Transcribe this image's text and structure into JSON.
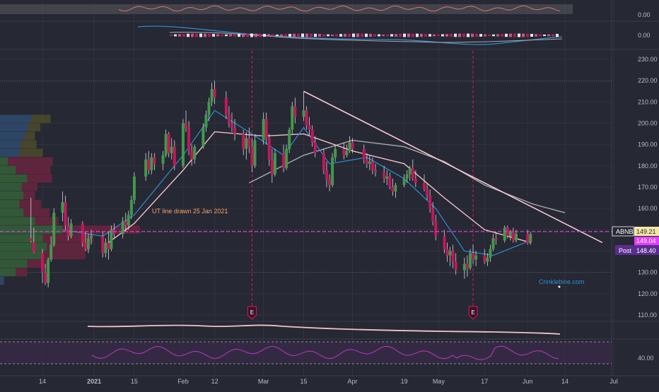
{
  "colors": {
    "background": "#262834",
    "grid": "#30333f",
    "up": "#3f9a4a",
    "down": "#c2185b",
    "ma_fast": "#2e8fd0",
    "ma_slow": "#f2c2c6",
    "ma_long": "#a8aab0",
    "trendline": "#f6c9cf",
    "earnings": "#d81b60",
    "price_line": "#e040fb",
    "vp_blue": "#2f4b6e",
    "vp_olive": "#4d4a2a",
    "vp_green": "#35603a",
    "vp_red": "#6b2540",
    "osc_fill": "#5a5a5e",
    "rsi_band": "#3a2a4a",
    "rsi_line": "#b83ac0",
    "watermark": "#2e8fd0"
  },
  "chart_data": {
    "type": "candlestick",
    "symbol": "ABNB",
    "y_ticks": [
      230,
      220,
      210,
      200,
      190,
      180,
      170,
      160,
      150,
      140,
      130,
      120,
      110
    ],
    "y_tick_labels": [
      "230.00",
      "220.00",
      "210.00",
      "200.00",
      "190.00",
      "180.00",
      "170.00",
      "160.00",
      "150.00",
      "140.00",
      "130.00",
      "120.00",
      "110.00"
    ],
    "ylim": [
      105,
      234
    ],
    "x_tick_labels": [
      "14",
      "2021",
      "15",
      "Feb",
      "12",
      "Mar",
      "15",
      "Apr",
      "19",
      "May",
      "17",
      "Jun",
      "14",
      "Jul"
    ],
    "x_tick_dates": [
      "2020-12-14",
      "2021-01-01",
      "2021-01-15",
      "2021-02-01",
      "2021-02-12",
      "2021-03-01",
      "2021-03-15",
      "2021-04-01",
      "2021-04-19",
      "2021-05-01",
      "2021-05-17",
      "2021-06-01",
      "2021-06-14",
      "2021-07-01"
    ],
    "last_price": 149.21,
    "secondary_price": 149.04,
    "post_price": 148.4,
    "price_labels": {
      "symbol": "ABNB",
      "last": "149.21",
      "secondary": "149.04",
      "post_tag": "Post",
      "post": "148.40"
    },
    "annotation": "UT line drawn 25 Jan 2021",
    "earnings_marker": "E",
    "earnings_dates": [
      "2021-02-25",
      "2021-05-13"
    ],
    "trendline": {
      "start": {
        "date": "2021-03-15",
        "value": 215
      },
      "end": {
        "date": "2021-06-27",
        "value": 144
      }
    },
    "candles": [
      [
        "2020-12-10",
        146,
        165,
        144,
        144.7
      ],
      [
        "2020-12-11",
        144,
        151,
        139,
        139.3
      ],
      [
        "2020-12-14",
        139,
        141,
        125,
        130
      ],
      [
        "2020-12-15",
        130,
        134,
        124,
        124.9
      ],
      [
        "2020-12-16",
        125,
        137,
        123,
        136
      ],
      [
        "2020-12-17",
        136,
        147,
        135,
        143
      ],
      [
        "2020-12-18",
        143,
        160,
        142,
        158
      ],
      [
        "2020-12-21",
        158,
        168,
        154,
        163
      ],
      [
        "2020-12-22",
        163,
        166,
        150,
        152
      ],
      [
        "2020-12-23",
        152,
        156,
        145,
        147
      ],
      [
        "2020-12-24",
        147,
        155,
        146,
        153
      ],
      [
        "2020-12-28",
        153,
        154,
        142,
        144
      ],
      [
        "2020-12-29",
        144,
        149,
        140,
        141
      ],
      [
        "2020-12-30",
        141,
        148,
        139,
        146
      ],
      [
        "2020-12-31",
        146,
        150,
        143,
        147
      ],
      [
        "2021-01-04",
        147,
        149,
        137,
        139
      ],
      [
        "2021-01-05",
        139,
        146,
        137,
        144
      ],
      [
        "2021-01-06",
        144,
        149,
        136,
        141
      ],
      [
        "2021-01-07",
        141,
        152,
        140,
        150
      ],
      [
        "2021-01-08",
        150,
        153,
        146,
        148
      ],
      [
        "2021-01-11",
        148,
        156,
        146,
        154
      ],
      [
        "2021-01-12",
        154,
        158,
        149,
        152
      ],
      [
        "2021-01-13",
        152,
        159,
        150,
        157
      ],
      [
        "2021-01-14",
        157,
        166,
        155,
        164
      ],
      [
        "2021-01-15",
        164,
        177,
        162,
        175
      ],
      [
        "2021-01-19",
        175,
        186,
        173,
        183
      ],
      [
        "2021-01-20",
        183,
        187,
        176,
        178
      ],
      [
        "2021-01-21",
        178,
        186,
        176,
        184
      ],
      [
        "2021-01-22",
        184,
        186,
        178,
        181
      ],
      [
        "2021-01-25",
        181,
        187,
        178,
        185
      ],
      [
        "2021-01-26",
        185,
        197,
        184,
        195
      ],
      [
        "2021-01-27",
        195,
        196,
        184,
        186
      ],
      [
        "2021-01-28",
        186,
        193,
        183,
        189
      ],
      [
        "2021-01-29",
        189,
        192,
        178,
        180
      ],
      [
        "2021-02-01",
        180,
        202,
        179,
        200
      ],
      [
        "2021-02-02",
        200,
        206,
        196,
        198
      ],
      [
        "2021-02-03",
        198,
        201,
        185,
        187
      ],
      [
        "2021-02-04",
        187,
        190,
        180,
        183
      ],
      [
        "2021-02-05",
        183,
        190,
        181,
        189
      ],
      [
        "2021-02-08",
        189,
        200,
        188,
        198
      ],
      [
        "2021-02-09",
        198,
        206,
        196,
        204
      ],
      [
        "2021-02-10",
        204,
        212,
        201,
        210
      ],
      [
        "2021-02-11",
        210,
        219,
        208,
        216
      ],
      [
        "2021-02-12",
        216,
        220,
        209,
        212
      ],
      [
        "2021-02-16",
        212,
        215,
        202,
        204
      ],
      [
        "2021-02-17",
        204,
        208,
        198,
        200
      ],
      [
        "2021-02-18",
        200,
        205,
        196,
        198
      ],
      [
        "2021-02-19",
        198,
        202,
        192,
        195
      ],
      [
        "2021-02-22",
        195,
        197,
        185,
        188
      ],
      [
        "2021-02-23",
        188,
        196,
        183,
        193
      ],
      [
        "2021-02-24",
        193,
        198,
        186,
        189
      ],
      [
        "2021-02-25",
        189,
        193,
        177,
        180
      ],
      [
        "2021-02-26",
        180,
        195,
        179,
        192
      ],
      [
        "2021-03-01",
        192,
        205,
        190,
        202
      ],
      [
        "2021-03-02",
        202,
        205,
        190,
        193
      ],
      [
        "2021-03-03",
        193,
        195,
        180,
        183
      ],
      [
        "2021-03-04",
        183,
        188,
        172,
        176
      ],
      [
        "2021-03-05",
        176,
        188,
        175,
        186
      ],
      [
        "2021-03-08",
        186,
        190,
        177,
        179
      ],
      [
        "2021-03-09",
        179,
        190,
        178,
        188
      ],
      [
        "2021-03-10",
        188,
        198,
        186,
        197
      ],
      [
        "2021-03-11",
        197,
        210,
        195,
        208
      ],
      [
        "2021-03-12",
        208,
        212,
        200,
        203
      ],
      [
        "2021-03-15",
        203,
        215,
        201,
        206
      ],
      [
        "2021-03-16",
        206,
        208,
        197,
        199
      ],
      [
        "2021-03-17",
        199,
        203,
        194,
        197
      ],
      [
        "2021-03-18",
        197,
        199,
        189,
        191
      ],
      [
        "2021-03-19",
        191,
        194,
        184,
        186
      ],
      [
        "2021-03-22",
        186,
        188,
        176,
        178
      ],
      [
        "2021-03-23",
        178,
        182,
        170,
        174
      ],
      [
        "2021-03-24",
        174,
        176,
        168,
        171
      ],
      [
        "2021-03-25",
        171,
        186,
        170,
        184
      ],
      [
        "2021-03-26",
        184,
        190,
        182,
        188
      ],
      [
        "2021-03-29",
        188,
        191,
        183,
        185
      ],
      [
        "2021-03-30",
        185,
        190,
        184,
        187
      ],
      [
        "2021-03-31",
        187,
        194,
        186,
        191
      ],
      [
        "2021-04-01",
        191,
        193,
        186,
        188
      ],
      [
        "2021-04-05",
        188,
        190,
        181,
        183
      ],
      [
        "2021-04-06",
        183,
        186,
        179,
        181
      ],
      [
        "2021-04-07",
        181,
        185,
        178,
        182
      ],
      [
        "2021-04-08",
        182,
        184,
        176,
        178
      ],
      [
        "2021-04-09",
        178,
        181,
        175,
        177
      ],
      [
        "2021-04-12",
        177,
        180,
        172,
        174
      ],
      [
        "2021-04-13",
        174,
        178,
        171,
        175
      ],
      [
        "2021-04-14",
        175,
        177,
        169,
        170
      ],
      [
        "2021-04-15",
        170,
        174,
        166,
        168
      ],
      [
        "2021-04-16",
        168,
        172,
        165,
        171
      ],
      [
        "2021-04-19",
        171,
        176,
        170,
        174
      ],
      [
        "2021-04-20",
        174,
        178,
        172,
        176
      ],
      [
        "2021-04-21",
        176,
        180,
        173,
        179
      ],
      [
        "2021-04-22",
        179,
        183,
        173,
        174
      ],
      [
        "2021-04-23",
        174,
        178,
        170,
        172
      ],
      [
        "2021-04-26",
        172,
        176,
        168,
        169
      ],
      [
        "2021-04-27",
        169,
        172,
        164,
        166
      ],
      [
        "2021-04-28",
        166,
        169,
        158,
        160
      ],
      [
        "2021-04-29",
        160,
        163,
        152,
        154
      ],
      [
        "2021-04-30",
        154,
        157,
        145,
        147
      ],
      [
        "2021-05-03",
        147,
        150,
        139,
        141
      ],
      [
        "2021-05-04",
        141,
        144,
        135,
        138
      ],
      [
        "2021-05-05",
        138,
        142,
        133,
        140
      ],
      [
        "2021-05-06",
        140,
        143,
        132,
        135
      ],
      [
        "2021-05-07",
        135,
        139,
        129,
        131
      ],
      [
        "2021-05-10",
        131,
        137,
        127,
        134
      ],
      [
        "2021-05-11",
        134,
        138,
        128,
        132
      ],
      [
        "2021-05-12",
        132,
        141,
        131,
        139
      ],
      [
        "2021-05-13",
        139,
        143,
        134,
        136
      ],
      [
        "2021-05-14",
        136,
        140,
        133,
        138
      ],
      [
        "2021-05-17",
        138,
        141,
        134,
        135
      ],
      [
        "2021-05-18",
        135,
        139,
        133,
        137
      ],
      [
        "2021-05-19",
        137,
        143,
        135,
        141
      ],
      [
        "2021-05-20",
        141,
        148,
        140,
        146
      ],
      [
        "2021-05-21",
        146,
        149,
        143,
        145
      ],
      [
        "2021-05-24",
        145,
        152,
        144,
        151
      ],
      [
        "2021-05-25",
        151,
        152,
        146,
        147
      ],
      [
        "2021-05-26",
        147,
        150,
        145,
        149
      ],
      [
        "2021-05-27",
        149,
        151,
        144,
        145
      ],
      [
        "2021-05-28",
        145,
        150,
        144,
        148
      ],
      [
        "2021-06-01",
        148,
        150,
        143,
        144
      ],
      [
        "2021-06-02",
        144,
        149,
        143,
        148
      ]
    ],
    "ma_fast": [
      [
        "2020-12-21",
        150
      ],
      [
        "2021-01-04",
        147
      ],
      [
        "2021-01-15",
        157
      ],
      [
        "2021-02-01",
        185
      ],
      [
        "2021-02-12",
        206
      ],
      [
        "2021-02-25",
        195
      ],
      [
        "2021-03-08",
        185
      ],
      [
        "2021-03-15",
        198
      ],
      [
        "2021-03-24",
        181
      ],
      [
        "2021-04-06",
        184
      ],
      [
        "2021-04-19",
        174
      ],
      [
        "2021-04-30",
        160
      ],
      [
        "2021-05-10",
        140
      ],
      [
        "2021-05-20",
        138
      ],
      [
        "2021-06-02",
        145
      ]
    ],
    "ma_slow": [
      [
        "2021-01-06",
        144
      ],
      [
        "2021-01-15",
        153
      ],
      [
        "2021-02-01",
        178
      ],
      [
        "2021-02-12",
        196
      ],
      [
        "2021-03-01",
        194
      ],
      [
        "2021-03-15",
        195
      ],
      [
        "2021-04-01",
        187
      ],
      [
        "2021-04-19",
        181
      ],
      [
        "2021-05-03",
        165
      ],
      [
        "2021-05-17",
        150
      ],
      [
        "2021-06-02",
        144
      ]
    ],
    "ma_long": [
      [
        "2021-02-24",
        172
      ],
      [
        "2021-03-15",
        185
      ],
      [
        "2021-04-01",
        192
      ],
      [
        "2021-04-19",
        189
      ],
      [
        "2021-05-03",
        182
      ],
      [
        "2021-05-17",
        171
      ],
      [
        "2021-06-03",
        162
      ],
      [
        "2021-06-14",
        158
      ]
    ],
    "volume_profile": [
      {
        "price": 202,
        "blue": 0.4,
        "olive": 0.25
      },
      {
        "price": 198,
        "blue": 0.36,
        "olive": 0.16
      },
      {
        "price": 194,
        "blue": 0.32,
        "olive": 0.13
      },
      {
        "price": 190,
        "blue": 0.27,
        "olive": 0.2
      },
      {
        "price": 186,
        "blue": 0.25,
        "olive": 0.3
      },
      {
        "price": 182,
        "green": 0.1,
        "red": 0.58
      },
      {
        "price": 178,
        "green": 0.2,
        "red": 0.45
      },
      {
        "price": 174,
        "green": 0.35,
        "red": 0.32
      },
      {
        "price": 170,
        "green": 0.28,
        "red": 0.2
      },
      {
        "price": 166,
        "green": 0.3,
        "red": 0.15
      },
      {
        "price": 162,
        "green": 0.25,
        "red": 0.28
      },
      {
        "price": 158,
        "green": 0.3,
        "red": 0.34
      },
      {
        "price": 154,
        "green": 0.45,
        "red": 0.3
      },
      {
        "price": 150,
        "green": 0.8,
        "red": 1.0
      },
      {
        "price": 146,
        "green": 0.55,
        "red": 0.65
      },
      {
        "price": 142,
        "green": 0.6,
        "red": 0.55
      },
      {
        "price": 138,
        "green": 0.55,
        "red": 0.55
      },
      {
        "price": 134,
        "green": 0.35,
        "red": 0.25
      },
      {
        "price": 130,
        "green": 0.2,
        "red": 0.15
      },
      {
        "price": 126,
        "blue": 0.05
      }
    ],
    "oscillator_top": {
      "axis_label": "0.00"
    },
    "macd": {
      "axis_label": "0.00"
    },
    "rsi": {
      "axis_label": "40.00"
    }
  },
  "watermark": "Crinklebine.com"
}
